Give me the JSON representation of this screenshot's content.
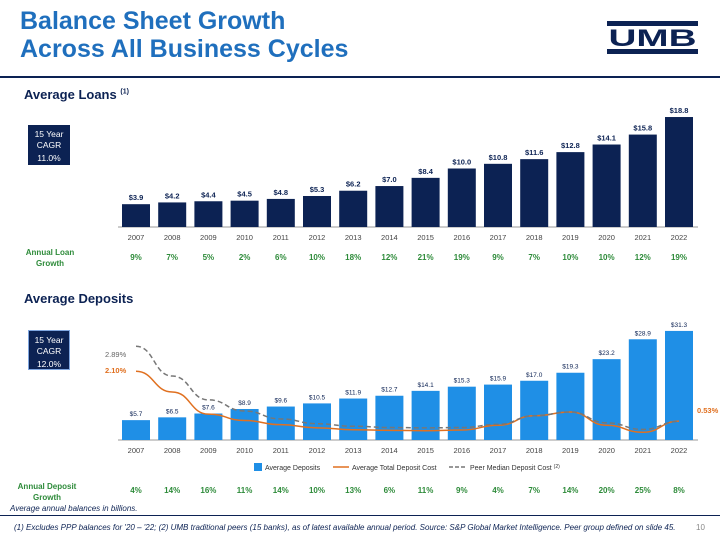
{
  "title_line1": "Balance Sheet Growth",
  "title_line2": "Across All Business Cycles",
  "logo_text": "UMB",
  "loans": {
    "section_title": "Average Loans",
    "footnote_marker": "(1)",
    "cagr_label": "15 Year CAGR",
    "cagr_value": "11.0%",
    "growth_row_label": "Annual Loan Growth",
    "growth": [
      "9%",
      "7%",
      "5%",
      "2%",
      "6%",
      "10%",
      "18%",
      "12%",
      "21%",
      "19%",
      "9%",
      "7%",
      "10%",
      "10%",
      "12%",
      "19%"
    ]
  },
  "deposits": {
    "section_title": "Average Deposits",
    "cagr_label": "15 Year CAGR",
    "cagr_value": "12.0%",
    "growth_row_label": "Annual Deposit Growth",
    "growth": [
      "4%",
      "14%",
      "16%",
      "11%",
      "14%",
      "10%",
      "13%",
      "6%",
      "11%",
      "9%",
      "4%",
      "7%",
      "14%",
      "20%",
      "25%",
      "8%"
    ],
    "cost_label_start": "2.10%",
    "peer_label_start": "2.89%",
    "cost_label_end": "0.53%"
  },
  "chart_data": [
    {
      "type": "bar",
      "title": "Average Loans",
      "categories": [
        "2007",
        "2008",
        "2009",
        "2010",
        "2011",
        "2012",
        "2013",
        "2014",
        "2015",
        "2016",
        "2017",
        "2018",
        "2019",
        "2020",
        "2021",
        "2022"
      ],
      "values": [
        3.9,
        4.2,
        4.4,
        4.5,
        4.8,
        5.3,
        6.2,
        7.0,
        8.4,
        10.0,
        10.8,
        11.6,
        12.8,
        14.1,
        15.8,
        18.8
      ],
      "labels": [
        "$3.9",
        "$4.2",
        "$4.4",
        "$4.5",
        "$4.8",
        "$5.3",
        "$6.2",
        "$7.0",
        "$8.4",
        "$10.0",
        "$10.8",
        "$11.6",
        "$12.8",
        "$14.1",
        "$15.8",
        "$18.8"
      ],
      "ylim": [
        0,
        20
      ],
      "color": "#0c2253"
    },
    {
      "type": "bar",
      "title": "Average Deposits",
      "categories": [
        "2007",
        "2008",
        "2009",
        "2010",
        "2011",
        "2012",
        "2013",
        "2014",
        "2015",
        "2016",
        "2017",
        "2018",
        "2019",
        "2020",
        "2021",
        "2022"
      ],
      "values": [
        5.7,
        6.5,
        7.6,
        8.9,
        9.6,
        10.5,
        11.9,
        12.7,
        14.1,
        15.3,
        15.9,
        17.0,
        19.3,
        23.2,
        28.9,
        31.3
      ],
      "labels": [
        "$5.7",
        "$6.5",
        "$7.6",
        "$8.9",
        "$9.6",
        "$10.5",
        "$11.9",
        "$12.7",
        "$14.1",
        "$15.3",
        "$15.9",
        "$17.0",
        "$19.3",
        "$23.2",
        "$28.9",
        "$31.3"
      ],
      "ylim": [
        0,
        33
      ],
      "color": "#1f8fe6",
      "series": [
        {
          "name": "Average Total Deposit Cost",
          "style": "solid",
          "color": "#e07020",
          "values": [
            2.1,
            1.45,
            0.75,
            0.55,
            0.42,
            0.32,
            0.26,
            0.24,
            0.23,
            0.25,
            0.4,
            0.7,
            0.82,
            0.4,
            0.18,
            0.53
          ]
        },
        {
          "name": "Peer Median Deposit Cost",
          "style": "dashed",
          "color": "#777777",
          "values": [
            2.89,
            1.95,
            1.2,
            0.85,
            0.6,
            0.45,
            0.37,
            0.33,
            0.32,
            0.33,
            0.43,
            0.7,
            0.82,
            0.48,
            0.27,
            0.52
          ]
        }
      ],
      "line_ylim": [
        0,
        3.4
      ],
      "legend": [
        "Average Deposits",
        "Average Total Deposit Cost",
        "Peer Median Deposit Cost"
      ],
      "legend_superscript": "(2)"
    }
  ],
  "avg_note": "Average annual balances in billions.",
  "footnote": "(1) Excludes PPP balances for '20 – '22; (2) UMB traditional peers (15 banks), as of latest available annual period. Source: S&P Global Market Intelligence. Peer group defined on slide 45.",
  "page_number": "10"
}
